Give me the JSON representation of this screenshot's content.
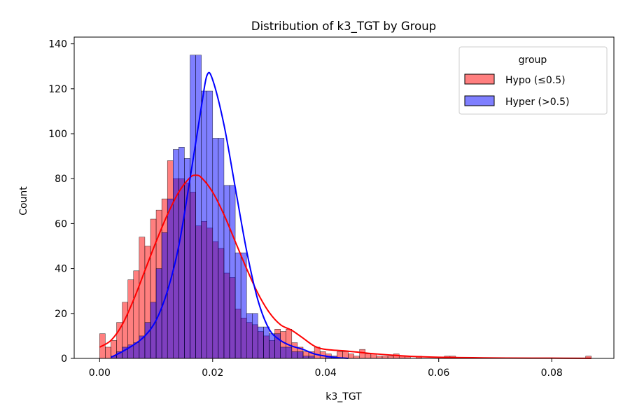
{
  "chart_data": {
    "type": "histogram",
    "title": "Distribution of k3_TGT by Group",
    "xlabel": "k3_TGT",
    "ylabel": "Count",
    "xlim": [
      -0.0045,
      0.091
    ],
    "ylim": [
      0,
      143
    ],
    "xticks": [
      0.0,
      0.02,
      0.04,
      0.06,
      0.08
    ],
    "xtick_labels": [
      "0.00",
      "0.02",
      "0.04",
      "0.06",
      "0.08"
    ],
    "yticks": [
      0,
      20,
      40,
      60,
      80,
      100,
      120,
      140
    ],
    "ytick_labels": [
      "0",
      "20",
      "40",
      "60",
      "80",
      "100",
      "120",
      "140"
    ],
    "bin_start": 0.0,
    "bin_width": 0.001,
    "grid": false,
    "legend": {
      "title": "group",
      "placement": "top-right"
    },
    "series": [
      {
        "name": "Hypo (≤0.5)",
        "color": "#ff0000",
        "fill_opacity": 0.5,
        "counts": [
          11,
          5,
          8,
          16,
          25,
          35,
          39,
          54,
          50,
          62,
          66,
          71,
          88,
          80,
          80,
          78,
          74,
          59,
          61,
          58,
          52,
          49,
          38,
          36,
          22,
          18,
          16,
          15,
          12,
          10,
          8,
          13,
          12,
          13,
          7,
          5,
          3,
          3,
          5,
          3,
          2,
          1,
          3,
          3,
          2,
          1,
          4,
          2,
          2,
          1,
          1,
          1,
          2,
          1,
          1,
          0,
          1,
          0,
          0,
          0,
          0,
          1,
          1,
          0,
          0,
          0,
          0,
          0,
          0,
          0,
          0,
          0,
          0,
          0,
          0,
          0,
          0,
          0,
          0,
          0,
          0,
          0,
          0,
          0,
          0,
          0,
          1
        ],
        "kde": [
          [
            0.0,
            5
          ],
          [
            0.002,
            8
          ],
          [
            0.004,
            15
          ],
          [
            0.006,
            26
          ],
          [
            0.008,
            39
          ],
          [
            0.01,
            52
          ],
          [
            0.012,
            64
          ],
          [
            0.014,
            74
          ],
          [
            0.016,
            80.5
          ],
          [
            0.017,
            81.5
          ],
          [
            0.018,
            80.5
          ],
          [
            0.02,
            74
          ],
          [
            0.022,
            64
          ],
          [
            0.024,
            52
          ],
          [
            0.026,
            40
          ],
          [
            0.028,
            29
          ],
          [
            0.03,
            20.5
          ],
          [
            0.032,
            15
          ],
          [
            0.034,
            12.5
          ],
          [
            0.036,
            9
          ],
          [
            0.038,
            5.5
          ],
          [
            0.04,
            4
          ],
          [
            0.044,
            3.2
          ],
          [
            0.048,
            2.2
          ],
          [
            0.052,
            1.4
          ],
          [
            0.056,
            0.8
          ],
          [
            0.06,
            0.5
          ],
          [
            0.066,
            0.3
          ],
          [
            0.072,
            0.15
          ],
          [
            0.08,
            0.1
          ],
          [
            0.087,
            0.05
          ]
        ]
      },
      {
        "name": "Hyper (>0.5)",
        "color": "#0000ff",
        "fill_opacity": 0.5,
        "counts": [
          0,
          0,
          1,
          3,
          5,
          6,
          7,
          10,
          16,
          25,
          40,
          56,
          71,
          93,
          94,
          89,
          135,
          135,
          119,
          119,
          98,
          98,
          77,
          77,
          47,
          47,
          20,
          20,
          14,
          14,
          11,
          11,
          5,
          5,
          3,
          3,
          1,
          1,
          0,
          0,
          1,
          1,
          0,
          0,
          0,
          0,
          0,
          0,
          0,
          0,
          0,
          0,
          0,
          0,
          0,
          0,
          0,
          0,
          0,
          0,
          0,
          0,
          0,
          0,
          0,
          0,
          0,
          0,
          0,
          0,
          0,
          0,
          0,
          0,
          0,
          0,
          0,
          0,
          0,
          0,
          0,
          0,
          0,
          0,
          0,
          0,
          0
        ],
        "kde": [
          [
            0.002,
            0.5
          ],
          [
            0.004,
            3
          ],
          [
            0.006,
            6
          ],
          [
            0.008,
            10
          ],
          [
            0.01,
            17
          ],
          [
            0.012,
            30
          ],
          [
            0.014,
            50
          ],
          [
            0.016,
            80
          ],
          [
            0.018,
            112
          ],
          [
            0.019,
            126
          ],
          [
            0.02,
            124
          ],
          [
            0.022,
            104
          ],
          [
            0.024,
            76
          ],
          [
            0.026,
            48
          ],
          [
            0.028,
            26
          ],
          [
            0.03,
            13
          ],
          [
            0.032,
            8
          ],
          [
            0.034,
            5.5
          ],
          [
            0.036,
            4
          ],
          [
            0.038,
            2
          ],
          [
            0.04,
            1
          ],
          [
            0.042,
            0.3
          ],
          [
            0.044,
            0.05
          ]
        ]
      }
    ]
  }
}
